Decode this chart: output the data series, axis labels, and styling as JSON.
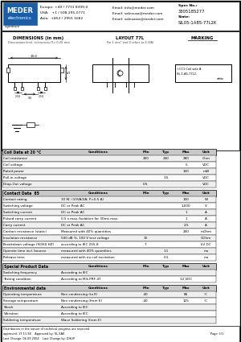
{
  "title": "SIL05-1A85-77L2K",
  "spec_no": "3305185277",
  "europe": "Europe: +49 / 7731 8399-0",
  "usa": "USA:   +1 / 508 295-0771",
  "asia": "Asia:  +852 / 2955 1682",
  "email_info": "Email: info@meder.com",
  "email_salesusa": "Email: salesusa@meder.com",
  "email_salesasia": "Email: salesasia@meder.com",
  "spec_no_label": "Spec No.:",
  "state_label": "State:",
  "dimensions_title": "DIMENSIONS (in mm)",
  "dimensions_sub": "Dimensions limit: tolerances IT= 0.25 mm",
  "layout_title": "LAYOUT 77L",
  "layout_sub": "Pin 1 mm² and 2 refers to E (2A)",
  "marking_title": "MARKING",
  "marking_line1": "+CC1 Coil side A",
  "marking_line2": "SIL-1-A5-77L2-",
  "marking_line3": "white",
  "coil_header": "Coil Data at 20 °C",
  "coil_rows": [
    [
      "Coil resistance",
      "",
      "200",
      "240",
      "280",
      "Ohm"
    ],
    [
      "Coil voltage",
      "",
      "",
      "",
      "5",
      "VDC"
    ],
    [
      "Rated power",
      "",
      "",
      "",
      "100",
      "mW"
    ],
    [
      "Pull-in voltage",
      "",
      "",
      "3.5",
      "",
      "VDC"
    ],
    [
      "Drop-Out voltage",
      "",
      "0.5",
      "",
      "",
      "VDC"
    ]
  ],
  "contact_header": "Contact Data  85",
  "contact_rows": [
    [
      "Contact rating",
      "10 W; (10VA/2A; P=0.5 A)",
      "",
      "",
      "100",
      "W"
    ],
    [
      "Switching voltage",
      "DC or Peak AC",
      "",
      "",
      "1,000",
      "V"
    ],
    [
      "Switching current",
      "DC or Peak AC",
      "",
      "",
      "1",
      "A"
    ],
    [
      "Pulsed carry current",
      "0.5 s max./Isolation for 30ms max.",
      "",
      "",
      "1",
      "A"
    ],
    [
      "Carry current",
      "DC or Peak AC",
      "",
      "",
      "2.5",
      "A"
    ],
    [
      "Contact resistance (static)",
      "Measured with 40% quantities",
      "",
      "",
      "200",
      "mOhm"
    ],
    [
      "Insulation resistance",
      "500 dB %, 100 V test voltage",
      "10",
      "",
      "",
      "GOhm"
    ],
    [
      "Breakdown voltage (50/60 HZ)",
      "according to IEC 255-8",
      "7",
      "",
      "",
      "kV DC"
    ],
    [
      "Operate time incl. bounce",
      "measured with 40% quantities",
      "",
      "1.1",
      "",
      "ms"
    ],
    [
      "Release time",
      "measured with no coil excitation",
      "",
      "0.1",
      "",
      "ms"
    ]
  ],
  "special_header": "Special Product Data",
  "special_rows": [
    [
      "Switching frequency",
      "According to IEC",
      "",
      "",
      "",
      ""
    ],
    [
      "Testing condition",
      "According to MIL-PRF-47",
      "",
      "",
      "12 VDC",
      ""
    ]
  ],
  "env_header": "Environmental data",
  "env_rows": [
    [
      "Operating temperature",
      "Non condensing (to E)",
      "-40",
      "",
      "85",
      "°C"
    ],
    [
      "Storage temperature",
      "Non condensing (from E)",
      "-40",
      "",
      "125",
      "°C"
    ],
    [
      "Shock",
      "According to IEC",
      "",
      "",
      "",
      ""
    ],
    [
      "Vibration",
      "According to IEC",
      "",
      "",
      "",
      ""
    ],
    [
      "Soldering temperature",
      "Wave Soldering (from E)",
      "",
      "",
      "",
      ""
    ]
  ],
  "footer_dist": "Distributors in the nature of technical progress are reserved",
  "footer_approved": "approved: 17.11.94    Approved by: SL-SAK",
  "footer_change": "Last Change: 06.09.2004    Last Change by: DHLIP",
  "footer_page": "Page: 1/1",
  "bg_color": "#ffffff",
  "meder_blue": "#1a5ea8",
  "table_hdr_bg": "#c8c8c8",
  "row_alt_bg": "#efefef"
}
